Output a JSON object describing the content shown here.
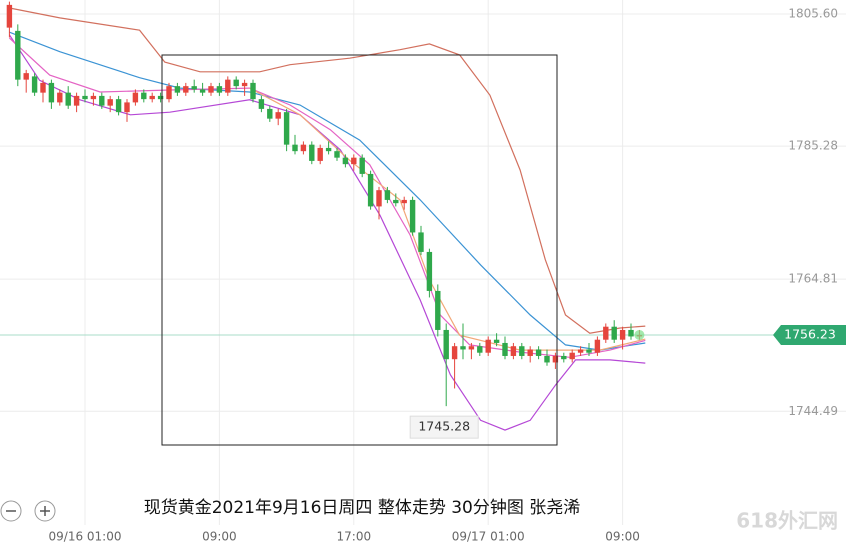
{
  "chart_data": {
    "type": "candlestick",
    "title": "现货黄金2021年9月16日周四 整体走势 30分钟图  张尧浠",
    "watermark": "618外汇网",
    "categories": [
      null,
      null,
      null,
      null,
      null,
      null,
      null,
      null,
      null,
      "09/16 01:00",
      null,
      null,
      null,
      null,
      null,
      null,
      null,
      null,
      null,
      null,
      null,
      null,
      null,
      null,
      null,
      "09:00",
      null,
      null,
      null,
      null,
      null,
      null,
      null,
      null,
      null,
      null,
      null,
      null,
      null,
      null,
      null,
      "17:00",
      null,
      null,
      null,
      null,
      null,
      null,
      null,
      null,
      null,
      null,
      null,
      null,
      null,
      null,
      null,
      "09/17 01:00",
      null,
      null,
      null,
      null,
      null,
      null,
      null,
      null,
      null,
      null,
      null,
      null,
      null,
      null,
      null,
      "09:00",
      null,
      null
    ],
    "open": [
      1803.5,
      1803,
      1795.5,
      1796,
      1793.5,
      1795,
      1792,
      1793.5,
      1791.5,
      1793,
      1792.5,
      1793,
      1791.5,
      1792.5,
      1790.5,
      1792,
      1793.5,
      1792.5,
      1793,
      1792.5,
      1794.5,
      1793.5,
      1794.5,
      1794,
      1793.5,
      1794.5,
      1793.5,
      1795.5,
      1794.5,
      1795,
      1792.5,
      1791,
      1789.5,
      1790.5,
      1785.5,
      1784.5,
      1785.5,
      1783,
      1785,
      1784.5,
      1783.5,
      1782.5,
      1783.5,
      1781,
      1776,
      1778.5,
      1777,
      1776.5,
      1777,
      1772,
      1769,
      1763,
      1757,
      1752.5,
      1754.5,
      1754,
      1754.5,
      1753.5,
      1755.5,
      1755,
      1753,
      1754.5,
      1753,
      1754,
      1753,
      1752,
      1753,
      1752.5,
      1753.5,
      1754,
      1753.5,
      1755.5,
      1757.5,
      1755.5,
      1757,
      1756
    ],
    "high": [
      1807.5,
      1804,
      1797,
      1796.5,
      1795.5,
      1795.5,
      1794,
      1794.5,
      1793.5,
      1794,
      1793.5,
      1793.5,
      1793,
      1793,
      1792.5,
      1794,
      1794,
      1793.5,
      1793.5,
      1795,
      1795,
      1795,
      1795.5,
      1795,
      1795,
      1795,
      1796,
      1796,
      1795.5,
      1795.5,
      1793,
      1791.5,
      1791,
      1791,
      1787,
      1786,
      1786,
      1785.5,
      1786,
      1785,
      1784,
      1784,
      1784,
      1781.5,
      1779,
      1779,
      1778,
      1777.5,
      1777.5,
      1773,
      1769.5,
      1764,
      1758,
      1755,
      1758,
      1755,
      1755,
      1756,
      1756.5,
      1756,
      1755,
      1755,
      1754.5,
      1754.5,
      1754,
      1753.5,
      1753.5,
      1754,
      1754.5,
      1755,
      1756,
      1758,
      1758.5,
      1757.5,
      1758,
      1757
    ],
    "low": [
      1802,
      1794.5,
      1793.5,
      1793,
      1792,
      1791,
      1791.5,
      1791,
      1790.5,
      1792,
      1791.5,
      1791,
      1790.5,
      1790,
      1789,
      1791.5,
      1792,
      1792,
      1792,
      1792,
      1793,
      1793,
      1793.5,
      1793,
      1793,
      1793,
      1793,
      1794,
      1793,
      1792,
      1790.5,
      1789,
      1788.5,
      1784.5,
      1784,
      1784,
      1782.5,
      1782.5,
      1784,
      1783,
      1782,
      1781.5,
      1780.5,
      1775.5,
      1774,
      1776.5,
      1776,
      1775.5,
      1771.5,
      1768.5,
      1762,
      1756,
      1745.28,
      1748,
      1752.5,
      1752.5,
      1753,
      1753,
      1754.5,
      1752.5,
      1752.5,
      1752.5,
      1752,
      1752.5,
      1751.5,
      1751,
      1752,
      1752,
      1753,
      1753,
      1753,
      1755,
      1755,
      1754,
      1755.5,
      1755.5
    ],
    "close": [
      1807,
      1795.5,
      1796.5,
      1793.5,
      1795,
      1792,
      1793.5,
      1791.5,
      1793,
      1792.5,
      1793,
      1791.5,
      1792.5,
      1790.5,
      1792,
      1793.5,
      1792.5,
      1793,
      1792.5,
      1794.5,
      1793.5,
      1794.5,
      1794,
      1793.5,
      1794.5,
      1793.5,
      1795.5,
      1794.5,
      1795,
      1792.5,
      1791,
      1789.5,
      1790.5,
      1785.5,
      1784.5,
      1785.5,
      1783,
      1785,
      1784.5,
      1783.5,
      1782.5,
      1783.5,
      1781,
      1776,
      1778.5,
      1777,
      1776.5,
      1777,
      1772,
      1769,
      1763,
      1757,
      1752.5,
      1754.5,
      1754,
      1754.5,
      1753.5,
      1755.5,
      1755,
      1753,
      1754.5,
      1753,
      1754,
      1753,
      1752,
      1753,
      1752.5,
      1753.5,
      1754,
      1753.5,
      1755.5,
      1757.5,
      1755.5,
      1757,
      1756,
      1756.23
    ],
    "up_color": "#e5453d",
    "down_color": "#2fa84b",
    "lines": [
      {
        "color": "#d2705e",
        "x": [
          0.1,
          6,
          15.5,
          18.5,
          22.7,
          29.8,
          33.4,
          40.5,
          46.5,
          50,
          53.6,
          57.2,
          60.8,
          63.8,
          66.2,
          69.1,
          72.7,
          75.7
        ],
        "values": [
          1806.5,
          1805,
          1803.1,
          1798.2,
          1796.7,
          1796.7,
          1797.8,
          1798.8,
          1800.1,
          1801,
          1799.3,
          1793.1,
          1781.6,
          1767.8,
          1759.3,
          1756.5,
          1757.3,
          1757.6
        ]
      },
      {
        "color": "#b548d6",
        "x": [
          0,
          3.6,
          8.4,
          14.4,
          19.1,
          28.6,
          34.6,
          39.4,
          44.1,
          48.9,
          52.5,
          56.1,
          59,
          62,
          65,
          67.4,
          71.5,
          75.7
        ],
        "values": [
          1802.4,
          1795.4,
          1792.4,
          1790.1,
          1790.5,
          1792.4,
          1790.1,
          1784.7,
          1774.7,
          1761.6,
          1750.1,
          1743.1,
          1741.6,
          1743.1,
          1748.5,
          1752.4,
          1752.4,
          1751.9
        ]
      },
      {
        "color": "#3b93d4",
        "x": [
          0,
          6,
          15.5,
          20.3,
          28.6,
          34.6,
          41.7,
          48.9,
          56.1,
          62,
          66.2,
          70.3,
          75.7
        ],
        "values": [
          1802.8,
          1799.8,
          1795.8,
          1794.2,
          1793.6,
          1791.6,
          1786.2,
          1777,
          1767,
          1759.3,
          1754.7,
          1753.9,
          1755
        ]
      },
      {
        "color": "#e463c4",
        "x": [
          0,
          4.8,
          10.8,
          19.1,
          28.6,
          33.4,
          38.2,
          42.9,
          47.7,
          51.3,
          54.8,
          60.8,
          66.7,
          71.5,
          75.7
        ],
        "values": [
          1801.9,
          1796.2,
          1793.6,
          1793.9,
          1794.2,
          1791.6,
          1787.8,
          1782.4,
          1771.6,
          1759.3,
          1754.7,
          1753.6,
          1752.8,
          1753.9,
          1755.4
        ]
      },
      {
        "color": "#f2a878",
        "x": [
          28.6,
          34.6,
          40.5,
          46.5,
          50,
          53.6,
          60.8,
          70.3,
          75.7
        ],
        "values": [
          1794.2,
          1790.1,
          1783.1,
          1777,
          1764.7,
          1756.2,
          1753.9,
          1753.9,
          1755.6
        ]
      }
    ],
    "ylim": [
      1727.0,
      1807.75
    ],
    "yticks": [
      {
        "value": 1805.6,
        "label": "1805.60"
      },
      1785.28,
      1764.81,
      1744.49
    ],
    "grid": true
  }
}
